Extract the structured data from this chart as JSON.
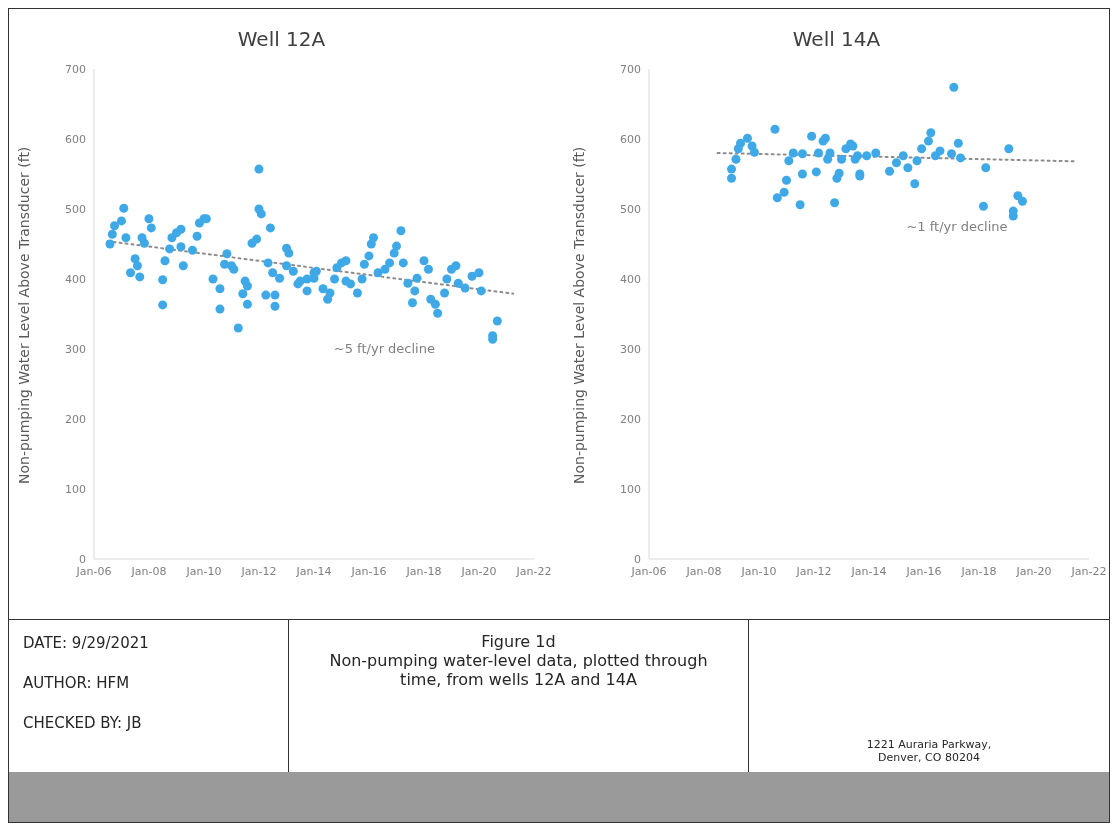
{
  "chart_data": [
    {
      "type": "scatter",
      "title": "Well 12A",
      "ylabel": "Non-pumping Water Level Above Transducer (ft)",
      "xlim": [
        "2006-01",
        "2022-01"
      ],
      "xticks": [
        {
          "value": "2006-01",
          "label": "Jan-06"
        },
        {
          "value": "2008-01",
          "label": "Jan-08"
        },
        {
          "value": "2010-01",
          "label": "Jan-10"
        },
        {
          "value": "2012-01",
          "label": "Jan-12"
        },
        {
          "value": "2014-01",
          "label": "Jan-14"
        },
        {
          "value": "2016-01",
          "label": "Jan-16"
        },
        {
          "value": "2018-01",
          "label": "Jan-18"
        },
        {
          "value": "2020-01",
          "label": "Jan-20"
        },
        {
          "value": "2022-01",
          "label": "Jan-22"
        }
      ],
      "ylim": [
        0,
        700
      ],
      "yticks": [
        0,
        100,
        200,
        300,
        400,
        500,
        600,
        700
      ],
      "annotations": [
        "~5 ft/yr decline"
      ],
      "series": [
        {
          "color": "#3fa9e8",
          "marker": "circle",
          "x": [
            "2006-08",
            "2006-09",
            "2006-10",
            "2007-01",
            "2007-02",
            "2007-03",
            "2007-05",
            "2007-07",
            "2007-08",
            "2007-09",
            "2007-10",
            "2007-11",
            "2008-01",
            "2008-02",
            "2008-07",
            "2008-07",
            "2008-08",
            "2008-10",
            "2008-11",
            "2009-01",
            "2009-03",
            "2009-03",
            "2009-04",
            "2009-08",
            "2009-10",
            "2009-11",
            "2010-01",
            "2010-02",
            "2010-05",
            "2010-08",
            "2010-08",
            "2010-10",
            "2010-11",
            "2011-01",
            "2011-02",
            "2011-04",
            "2011-06",
            "2011-07",
            "2011-08",
            "2011-08",
            "2011-10",
            "2011-12",
            "2012-01",
            "2012-01",
            "2012-02",
            "2012-04",
            "2012-05",
            "2012-06",
            "2012-07",
            "2012-08",
            "2012-08",
            "2012-10",
            "2013-01",
            "2013-01",
            "2013-02",
            "2013-04",
            "2013-06",
            "2013-07",
            "2013-10",
            "2013-10",
            "2014-01",
            "2014-01",
            "2014-02",
            "2014-05",
            "2014-07",
            "2014-08",
            "2014-10",
            "2014-11",
            "2015-01",
            "2015-03",
            "2015-03",
            "2015-05",
            "2015-08",
            "2015-10",
            "2015-11",
            "2016-01",
            "2016-02",
            "2016-03",
            "2016-05",
            "2016-08",
            "2016-10",
            "2016-12",
            "2017-01",
            "2017-03",
            "2017-04",
            "2017-06",
            "2017-08",
            "2017-09",
            "2017-10",
            "2018-01",
            "2018-03",
            "2018-04",
            "2018-06",
            "2018-07",
            "2018-10",
            "2018-11",
            "2019-01",
            "2019-03",
            "2019-04",
            "2019-07",
            "2019-10",
            "2020-01",
            "2020-02",
            "2020-07",
            "2020-07",
            "2020-09"
          ],
          "values": [
            450,
            464,
            476,
            483,
            501,
            459,
            409,
            429,
            419,
            403,
            459,
            451,
            486,
            473,
            363,
            399,
            426,
            443,
            459,
            466,
            471,
            446,
            419,
            441,
            461,
            480,
            486,
            486,
            400,
            386,
            357,
            421,
            436,
            419,
            414,
            330,
            379,
            397,
            364,
            390,
            451,
            457,
            557,
            500,
            493,
            377,
            423,
            473,
            409,
            377,
            361,
            401,
            444,
            419,
            437,
            411,
            393,
            397,
            400,
            383,
            409,
            401,
            411,
            386,
            371,
            380,
            400,
            416,
            423,
            426,
            397,
            393,
            380,
            400,
            421,
            433,
            450,
            459,
            409,
            414,
            423,
            437,
            447,
            469,
            423,
            394,
            366,
            383,
            401,
            426,
            414,
            371,
            364,
            351,
            380,
            400,
            414,
            419,
            394,
            387,
            404,
            409,
            383,
            319,
            314,
            340
          ]
        },
        {
          "type": "line",
          "color": "#8c8c8c",
          "line_style": "dotted",
          "x": [
            "2006-07",
            "2021-04"
          ],
          "values": [
            454,
            379
          ]
        }
      ]
    },
    {
      "type": "scatter",
      "title": "Well 14A",
      "ylabel": "Non-pumping Water Level Above Transducer (ft)",
      "xlim": [
        "2006-01",
        "2022-01"
      ],
      "xticks": [
        {
          "value": "2006-01",
          "label": "Jan-06"
        },
        {
          "value": "2008-01",
          "label": "Jan-08"
        },
        {
          "value": "2010-01",
          "label": "Jan-10"
        },
        {
          "value": "2012-01",
          "label": "Jan-12"
        },
        {
          "value": "2014-01",
          "label": "Jan-14"
        },
        {
          "value": "2016-01",
          "label": "Jan-16"
        },
        {
          "value": "2018-01",
          "label": "Jan-18"
        },
        {
          "value": "2020-01",
          "label": "Jan-20"
        },
        {
          "value": "2022-01",
          "label": "Jan-22"
        }
      ],
      "ylim": [
        0,
        700
      ],
      "yticks": [
        0,
        100,
        200,
        300,
        400,
        500,
        600,
        700
      ],
      "annotations": [
        "~1 ft/yr decline"
      ],
      "series": [
        {
          "color": "#3fa9e8",
          "marker": "circle",
          "x": [
            "2009-01",
            "2009-01",
            "2009-03",
            "2009-04",
            "2009-05",
            "2009-08",
            "2009-10",
            "2009-11",
            "2010-08",
            "2010-09",
            "2010-12",
            "2011-01",
            "2011-02",
            "2011-04",
            "2011-07",
            "2011-08",
            "2011-08",
            "2011-12",
            "2012-02",
            "2012-03",
            "2012-05",
            "2012-06",
            "2012-07",
            "2012-08",
            "2012-10",
            "2012-11",
            "2012-12",
            "2013-01",
            "2013-03",
            "2013-05",
            "2013-06",
            "2013-07",
            "2013-08",
            "2013-09",
            "2013-09",
            "2013-12",
            "2014-04",
            "2014-10",
            "2015-01",
            "2015-04",
            "2015-06",
            "2015-09",
            "2015-10",
            "2015-12",
            "2016-03",
            "2016-04",
            "2016-06",
            "2016-08",
            "2017-01",
            "2017-02",
            "2017-04",
            "2017-05",
            "2018-03",
            "2018-04",
            "2019-02",
            "2019-04",
            "2019-04",
            "2019-06",
            "2019-08"
          ],
          "values": [
            544,
            557,
            571,
            586,
            594,
            601,
            590,
            581,
            614,
            516,
            524,
            541,
            569,
            580,
            506,
            550,
            579,
            604,
            553,
            580,
            597,
            601,
            571,
            580,
            509,
            544,
            551,
            571,
            586,
            593,
            590,
            571,
            576,
            547,
            550,
            576,
            580,
            554,
            566,
            576,
            559,
            536,
            569,
            586,
            597,
            609,
            576,
            583,
            579,
            674,
            594,
            573,
            504,
            559,
            586,
            497,
            490,
            519,
            511
          ]
        },
        {
          "type": "line",
          "color": "#8c8c8c",
          "line_style": "dotted",
          "x": [
            "2008-07",
            "2021-08"
          ],
          "values": [
            580,
            568
          ]
        }
      ]
    },
    {
      "type": "other",
      "title": "Figure 1d",
      "subtitle": "Non-pumping water-level data, plotted through time, from wells 12A and 14A",
      "annotations": [
        "DATE: 9/29/2021",
        "AUTHOR: HFM",
        "CHECKED BY: JB",
        "1221 Auraria Parkway, Denver, CO 80204"
      ]
    }
  ]
}
